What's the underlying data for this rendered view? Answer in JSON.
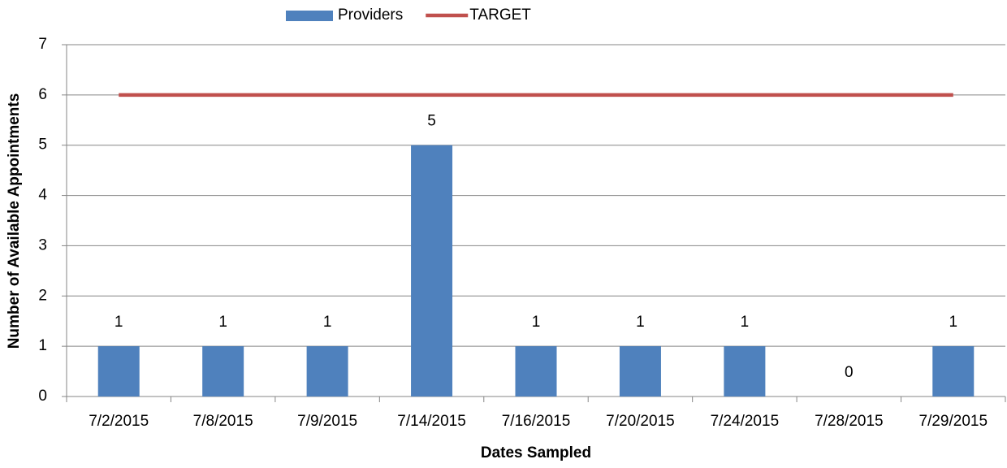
{
  "chart_data": {
    "type": "bar",
    "x_label": "Dates Sampled",
    "y_label": "Number of Available Appointments",
    "categories": [
      "7/2/2015",
      "7/8/2015",
      "7/9/2015",
      "7/14/2015",
      "7/16/2015",
      "7/20/2015",
      "7/24/2015",
      "7/28/2015",
      "7/29/2015"
    ],
    "series": [
      {
        "name": "Providers",
        "type": "bar",
        "color": "#4f81bd",
        "values": [
          1,
          1,
          1,
          5,
          1,
          1,
          1,
          0,
          1
        ]
      },
      {
        "name": "TARGET",
        "type": "line",
        "color": "#c0504d",
        "values": [
          6,
          6,
          6,
          6,
          6,
          6,
          6,
          6,
          6
        ]
      }
    ],
    "ylim": [
      0,
      7
    ],
    "yticks": [
      0,
      1,
      2,
      3,
      4,
      5,
      6,
      7
    ],
    "grid": true,
    "legend": "top"
  }
}
